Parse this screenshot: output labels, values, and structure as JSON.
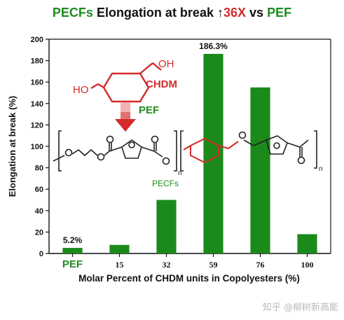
{
  "title": {
    "part1": "PECFs",
    "part2": "Elongation at break",
    "arrow": "↑",
    "part3": "36X",
    "part4": "vs",
    "part5": "PEF"
  },
  "colors": {
    "green": "#1e8c1e",
    "bar": "#1b8a1b",
    "red": "#d42a2a",
    "structure": "#222222"
  },
  "chart_data": {
    "type": "bar",
    "categories": [
      "PEF",
      "15",
      "32",
      "59",
      "76",
      "100"
    ],
    "values": [
      5.2,
      8,
      50,
      186.3,
      155,
      18
    ],
    "data_labels": {
      "0": "5.2%",
      "3": "186.3%"
    },
    "xlabel": "Molar Percent of CHDM units in Copolyesters (%)",
    "ylabel": "Elongation at break (%)",
    "ylim": [
      0,
      200
    ],
    "yticks": [
      0,
      20,
      40,
      60,
      80,
      100,
      120,
      140,
      160,
      180,
      200
    ],
    "grid": false,
    "legend": "none"
  },
  "structure": {
    "oh_top": "OH",
    "ho_left": "HO",
    "chdm": "CHDM",
    "pef": "PEF",
    "pecfs": "PECFs",
    "atom_o": "O",
    "subscript_n": "n"
  },
  "watermark": "知乎 @柳树新高能"
}
